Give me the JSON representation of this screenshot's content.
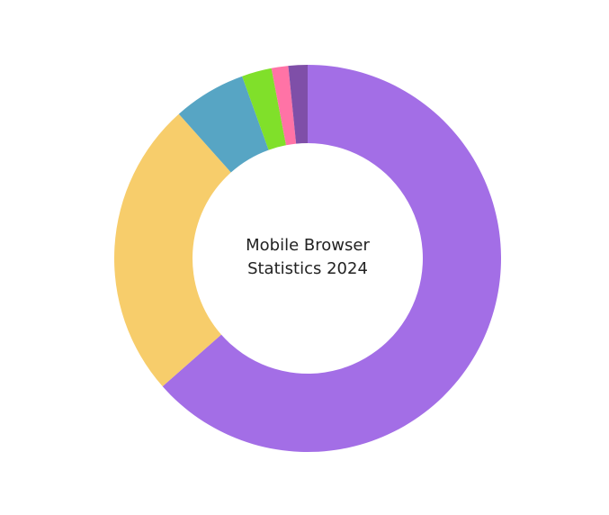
{
  "chart_data": {
    "type": "donut",
    "title": "Mobile Browser Statistics 2024",
    "values": [
      63.5,
      24.9,
      6.1,
      2.5,
      1.4,
      1.6
    ],
    "colors": [
      "#a36ee6",
      "#f7cd6b",
      "#57a5c4",
      "#80e02a",
      "#ff73a6",
      "#7f4fa8"
    ]
  }
}
